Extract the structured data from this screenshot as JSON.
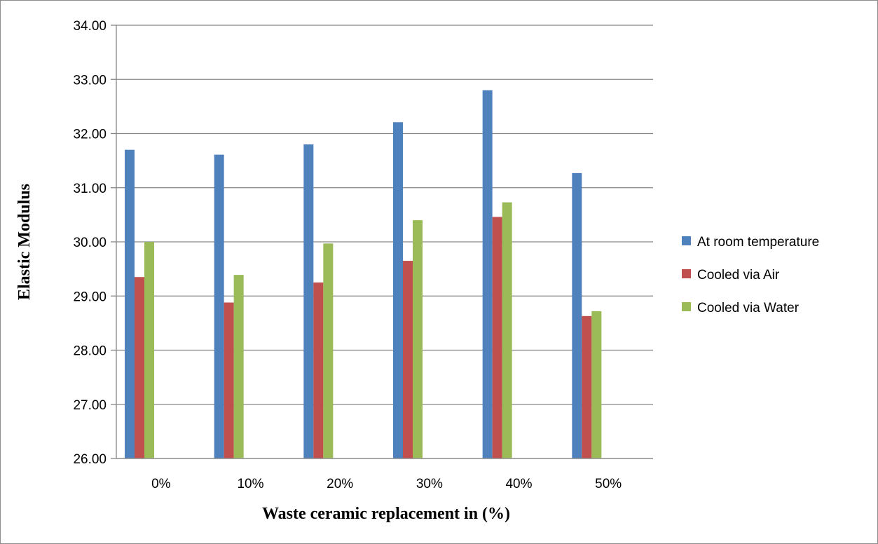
{
  "chart_data": {
    "type": "bar",
    "title": "",
    "xlabel": "Waste ceramic replacement in (%)",
    "ylabel": "Elastic Modulus",
    "categories": [
      "0%",
      "10%",
      "20%",
      "30%",
      "40%",
      "50%"
    ],
    "ylim": [
      26.0,
      34.0
    ],
    "yticks": [
      "26.00",
      "27.00",
      "28.00",
      "29.00",
      "30.00",
      "31.00",
      "32.00",
      "33.00",
      "34.00"
    ],
    "grid": true,
    "legend_position": "right",
    "series": [
      {
        "name": "At room temperature",
        "color": "#4f81bd",
        "values": [
          31.7,
          31.61,
          31.8,
          32.21,
          32.8,
          31.27
        ]
      },
      {
        "name": "Cooled via Air",
        "color": "#c0504d",
        "values": [
          29.35,
          28.88,
          29.25,
          29.65,
          30.46,
          28.63
        ]
      },
      {
        "name": "Cooled via Water",
        "color": "#9bbb59",
        "values": [
          30.0,
          29.39,
          29.97,
          30.4,
          30.73,
          28.72
        ]
      }
    ]
  }
}
